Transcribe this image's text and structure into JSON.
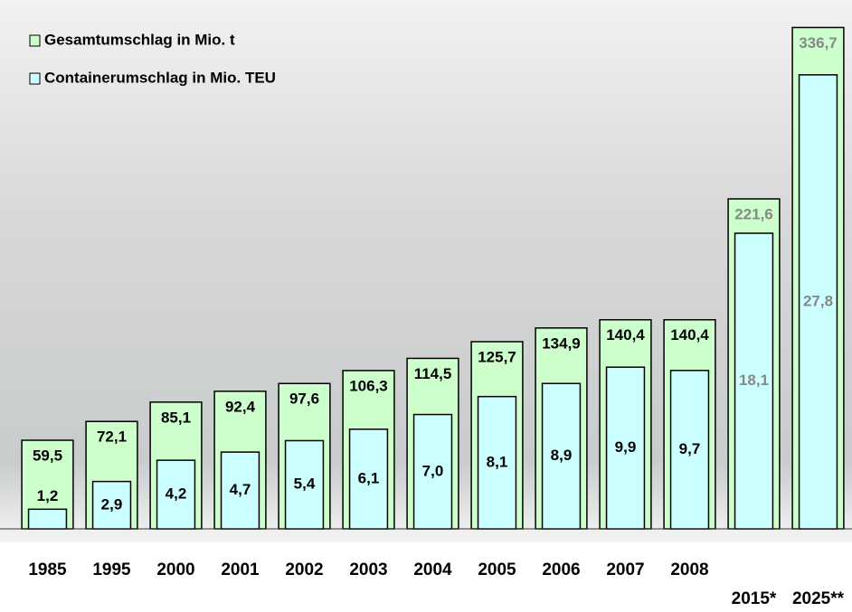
{
  "chart_data": {
    "type": "bar",
    "categories": [
      "1985",
      "1995",
      "2000",
      "2001",
      "2002",
      "2003",
      "2004",
      "2005",
      "2006",
      "2007",
      "2008",
      "2015*",
      "2025**"
    ],
    "series": [
      {
        "name": "Gesamtumschlag in Mio. t",
        "color": "#ccffcc",
        "values": [
          59.5,
          72.1,
          85.1,
          92.4,
          97.6,
          106.3,
          114.5,
          125.7,
          134.9,
          140.4,
          140.4,
          221.6,
          336.7
        ],
        "value_labels": [
          "59,5",
          "72,1",
          "85,1",
          "92,4",
          "97,6",
          "106,3",
          "114,5",
          "125,7",
          "134,9",
          "140,4",
          "140,4",
          "221,6",
          "336,7"
        ]
      },
      {
        "name": "Containerumschlag in Mio. TEU",
        "color": "#ccffff",
        "axis": "y2",
        "values": [
          1.2,
          2.9,
          4.2,
          4.7,
          5.4,
          6.1,
          7.0,
          8.1,
          8.9,
          9.9,
          9.7,
          18.1,
          27.8
        ],
        "value_labels": [
          "1,2",
          "2,9",
          "4,2",
          "4,7",
          "5,4",
          "6,1",
          "7,0",
          "8,1",
          "8,9",
          "9,9",
          "9,7",
          "18,1",
          "27,8"
        ]
      }
    ],
    "ylim": [
      0,
      340
    ],
    "y2lim": [
      0,
      31
    ]
  }
}
